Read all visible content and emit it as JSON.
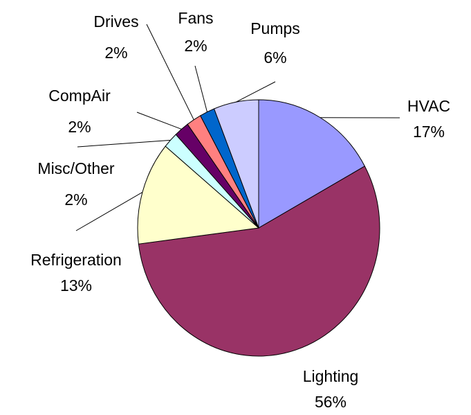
{
  "chart_data": {
    "type": "pie",
    "categories": [
      "HVAC",
      "Lighting",
      "Refrigeration",
      "Misc/Other",
      "CompAir",
      "Drives",
      "Fans",
      "Pumps"
    ],
    "values": [
      17,
      56,
      13,
      2,
      2,
      2,
      2,
      6
    ],
    "value_labels": [
      "17%",
      "56%",
      "13%",
      "2%",
      "2%",
      "2%",
      "2%",
      "6%"
    ],
    "colors": [
      "#9999ff",
      "#993366",
      "#ffffcc",
      "#ccffff",
      "#660066",
      "#ff8080",
      "#0066cc",
      "#ccccff"
    ]
  }
}
